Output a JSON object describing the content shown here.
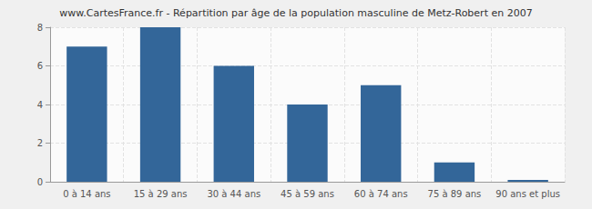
{
  "chart_data": {
    "type": "bar",
    "title": "www.CartesFrance.fr - Répartition par âge de la population masculine de Metz-Robert en 2007",
    "categories": [
      "0 à 14 ans",
      "15 à 29 ans",
      "30 à 44 ans",
      "45 à 59 ans",
      "60 à 74 ans",
      "75 à 89 ans",
      "90 ans et plus"
    ],
    "values": [
      7,
      8,
      6,
      4,
      5,
      1,
      0
    ],
    "color": "#336699",
    "ylim": [
      0,
      8
    ],
    "yticks": [
      0,
      2,
      4,
      6,
      8
    ],
    "grid": true
  }
}
